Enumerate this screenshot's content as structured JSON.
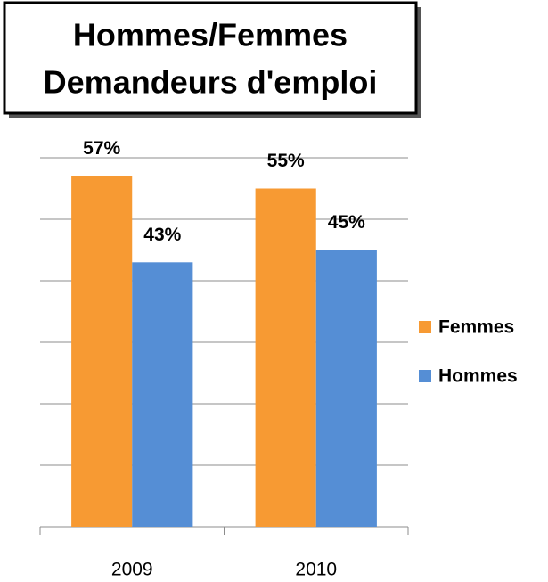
{
  "chart_data": {
    "type": "bar",
    "title": [
      "Hommes/Femmes",
      "Demandeurs d'emploi"
    ],
    "categories": [
      "2009",
      "2010"
    ],
    "series": [
      {
        "name": "Femmes",
        "color": "#f79a33",
        "values": [
          57,
          55
        ],
        "value_labels": [
          "57%",
          "55%"
        ]
      },
      {
        "name": "Hommes",
        "color": "#558ed5",
        "values": [
          43,
          45
        ],
        "value_labels": [
          "43%",
          "45%"
        ]
      }
    ],
    "ylim": [
      0,
      60
    ],
    "yticks": [
      0,
      10,
      20,
      30,
      40,
      50,
      60
    ],
    "grid": true,
    "legend": "right"
  }
}
